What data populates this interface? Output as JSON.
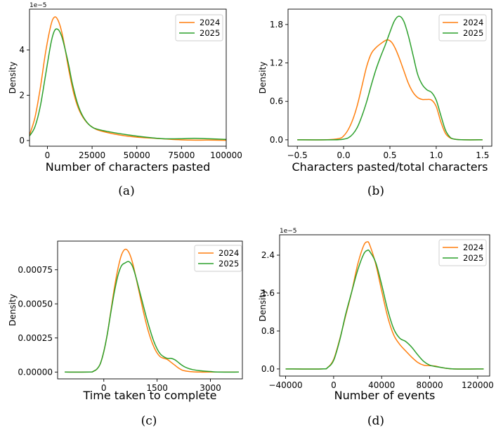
{
  "chart_data": [
    {
      "id": "a",
      "type": "line",
      "caption": "(a)",
      "xlabel": "Number of characters pasted",
      "ylabel": "Density",
      "y_offset_label": "1e−5",
      "xlim": [
        -10000,
        100000
      ],
      "ylim": [
        -0.25,
        5.8
      ],
      "xticks": [
        0,
        25000,
        50000,
        75000,
        100000
      ],
      "xtick_labels": [
        "0",
        "25000",
        "50000",
        "75000",
        "100000"
      ],
      "yticks": [
        0,
        2,
        4
      ],
      "ytick_labels": [
        "0",
        "2",
        "4"
      ],
      "legend_position": "top-right",
      "series": [
        {
          "name": "2024",
          "color": "#ff7f0e",
          "x": [
            -10000,
            -7000,
            -4000,
            -1000,
            2000,
            4000,
            6000,
            8000,
            10000,
            12000,
            15000,
            18000,
            22000,
            26000,
            30000,
            40000,
            50000,
            60000,
            70000,
            80000,
            90000,
            100000
          ],
          "y": [
            0.25,
            1.0,
            2.3,
            3.9,
            5.1,
            5.45,
            5.3,
            4.8,
            4.0,
            3.1,
            2.0,
            1.3,
            0.8,
            0.55,
            0.42,
            0.25,
            0.15,
            0.1,
            0.05,
            0.02,
            0.02,
            0.01
          ]
        },
        {
          "name": "2025",
          "color": "#2ca02c",
          "x": [
            -10000,
            -7000,
            -4000,
            -1000,
            2000,
            4000,
            6000,
            8000,
            10000,
            12000,
            14000,
            17000,
            20000,
            24000,
            28000,
            35000,
            45000,
            55000,
            65000,
            75000,
            82000,
            90000,
            100000
          ],
          "y": [
            0.2,
            0.6,
            1.5,
            2.9,
            4.3,
            4.85,
            4.9,
            4.6,
            4.0,
            3.3,
            2.5,
            1.6,
            1.05,
            0.65,
            0.5,
            0.38,
            0.25,
            0.15,
            0.08,
            0.08,
            0.1,
            0.08,
            0.05
          ]
        }
      ]
    },
    {
      "id": "b",
      "type": "line",
      "caption": "(b)",
      "xlabel": "Characters pasted/total characters",
      "ylabel": "Density",
      "y_offset_label": "",
      "xlim": [
        -0.6,
        1.6
      ],
      "ylim": [
        -0.1,
        2.04
      ],
      "xticks": [
        -0.5,
        0.0,
        0.5,
        1.0,
        1.5
      ],
      "xtick_labels": [
        "−0.5",
        "0.0",
        "0.5",
        "1.0",
        "1.5"
      ],
      "yticks": [
        0.0,
        0.6,
        1.2,
        1.8
      ],
      "ytick_labels": [
        "0.0",
        "0.6",
        "1.2",
        "1.8"
      ],
      "legend_position": "top-right",
      "series": [
        {
          "name": "2024",
          "color": "#ff7f0e",
          "x": [
            -0.5,
            -0.2,
            -0.05,
            0.0,
            0.05,
            0.1,
            0.15,
            0.2,
            0.25,
            0.3,
            0.35,
            0.4,
            0.45,
            0.48,
            0.52,
            0.56,
            0.6,
            0.65,
            0.7,
            0.75,
            0.8,
            0.85,
            0.9,
            0.95,
            1.0,
            1.05,
            1.1,
            1.15,
            1.2,
            1.3,
            1.5
          ],
          "y": [
            0.0,
            0.0,
            0.02,
            0.06,
            0.16,
            0.32,
            0.55,
            0.85,
            1.15,
            1.35,
            1.44,
            1.5,
            1.55,
            1.56,
            1.52,
            1.42,
            1.28,
            1.08,
            0.88,
            0.74,
            0.66,
            0.63,
            0.63,
            0.62,
            0.52,
            0.28,
            0.1,
            0.03,
            0.01,
            0.0,
            0.0
          ]
        },
        {
          "name": "2025",
          "color": "#2ca02c",
          "x": [
            -0.5,
            -0.1,
            0.0,
            0.05,
            0.1,
            0.15,
            0.2,
            0.25,
            0.3,
            0.35,
            0.4,
            0.45,
            0.5,
            0.55,
            0.6,
            0.65,
            0.7,
            0.75,
            0.8,
            0.85,
            0.9,
            0.95,
            1.0,
            1.05,
            1.1,
            1.15,
            1.2,
            1.3,
            1.5
          ],
          "y": [
            0.0,
            0.0,
            0.01,
            0.03,
            0.09,
            0.2,
            0.38,
            0.6,
            0.86,
            1.1,
            1.3,
            1.48,
            1.68,
            1.86,
            1.93,
            1.85,
            1.62,
            1.32,
            1.02,
            0.86,
            0.78,
            0.74,
            0.62,
            0.38,
            0.15,
            0.04,
            0.01,
            0.0,
            0.0
          ]
        }
      ]
    },
    {
      "id": "c",
      "type": "line",
      "caption": "(c)",
      "xlabel": "Time taken to complete",
      "ylabel": "Density",
      "y_offset_label": "",
      "xlim": [
        -1300,
        3900
      ],
      "ylim": [
        -5e-05,
        0.00096
      ],
      "xticks": [
        0,
        1500,
        3000
      ],
      "xtick_labels": [
        "0",
        "1500",
        "3000"
      ],
      "yticks": [
        0.0,
        0.00025,
        0.0005,
        0.00075
      ],
      "ytick_labels": [
        "0.00000",
        "0.00025",
        "0.00050",
        "0.00075"
      ],
      "legend_position": "top-right",
      "series": [
        {
          "name": "2024",
          "color": "#ff7f0e",
          "x": [
            -1100,
            -400,
            -300,
            -200,
            -100,
            0,
            100,
            200,
            300,
            400,
            500,
            600,
            700,
            800,
            900,
            1000,
            1100,
            1200,
            1300,
            1400,
            1500,
            1600,
            1700,
            1800,
            1900,
            2000,
            2100,
            2200,
            2300,
            2400,
            2500,
            2700,
            3000,
            3800
          ],
          "y": [
            0.0,
            0.0,
            5e-06,
            2e-05,
            6e-05,
            0.00015,
            0.00028,
            0.00045,
            0.00062,
            0.00076,
            0.00086,
            0.0009,
            0.00088,
            0.00081,
            0.0007,
            0.00058,
            0.00046,
            0.00035,
            0.00026,
            0.00019,
            0.00014,
            0.00011,
            0.0001,
            9e-05,
            7e-05,
            5e-05,
            3e-05,
            1.5e-05,
            8e-06,
            4e-06,
            2e-06,
            0.0,
            0.0,
            0.0
          ]
        },
        {
          "name": "2025",
          "color": "#2ca02c",
          "x": [
            -1100,
            -400,
            -300,
            -200,
            -100,
            0,
            100,
            200,
            300,
            400,
            500,
            600,
            700,
            800,
            900,
            1000,
            1100,
            1200,
            1300,
            1400,
            1500,
            1600,
            1700,
            1800,
            1900,
            2000,
            2100,
            2200,
            2300,
            2400,
            2500,
            2700,
            3000,
            3200,
            3800
          ],
          "y": [
            0.0,
            0.0,
            5e-06,
            2e-05,
            6e-05,
            0.00015,
            0.00028,
            0.00044,
            0.00059,
            0.00071,
            0.00078,
            0.0008,
            0.00081,
            0.00078,
            0.0007,
            0.0006,
            0.0005,
            0.0004,
            0.00031,
            0.00023,
            0.00017,
            0.00013,
            0.00011,
            0.0001,
            0.0001,
            9e-05,
            7e-05,
            5e-05,
            3.5e-05,
            2.5e-05,
            1.8e-05,
            1e-05,
            4e-06,
            0.0,
            0.0
          ]
        }
      ]
    },
    {
      "id": "d",
      "type": "line",
      "caption": "(d)",
      "xlabel": "Number of events",
      "ylabel": "Density",
      "y_offset_label": "1e−5",
      "xlim": [
        -45000,
        130000
      ],
      "ylim": [
        -0.15,
        2.83
      ],
      "xticks": [
        -40000,
        0,
        40000,
        80000,
        120000
      ],
      "xtick_labels": [
        "−40000",
        "0",
        "40000",
        "80000",
        "120000"
      ],
      "yticks": [
        0.0,
        0.8,
        1.6,
        2.4
      ],
      "ytick_labels": [
        "0.0",
        "0.8",
        "1.6",
        "2.4"
      ],
      "legend_position": "top-right",
      "series": [
        {
          "name": "2024",
          "color": "#ff7f0e",
          "x": [
            -40000,
            -10000,
            -5000,
            0,
            5000,
            10000,
            15000,
            20000,
            25000,
            28000,
            30000,
            35000,
            40000,
            45000,
            50000,
            55000,
            60000,
            65000,
            70000,
            75000,
            80000,
            85000,
            90000,
            100000,
            125000
          ],
          "y": [
            0.0,
            0.0,
            0.03,
            0.2,
            0.62,
            1.12,
            1.62,
            2.2,
            2.6,
            2.68,
            2.62,
            2.22,
            1.65,
            1.1,
            0.72,
            0.52,
            0.38,
            0.25,
            0.14,
            0.08,
            0.07,
            0.06,
            0.03,
            0.0,
            0.0
          ]
        },
        {
          "name": "2025",
          "color": "#2ca02c",
          "x": [
            -40000,
            -10000,
            -5000,
            0,
            5000,
            10000,
            15000,
            20000,
            25000,
            28000,
            30000,
            35000,
            40000,
            45000,
            50000,
            55000,
            60000,
            65000,
            70000,
            75000,
            80000,
            85000,
            90000,
            100000,
            125000
          ],
          "y": [
            0.0,
            0.0,
            0.03,
            0.18,
            0.6,
            1.15,
            1.62,
            2.08,
            2.42,
            2.5,
            2.48,
            2.25,
            1.78,
            1.25,
            0.85,
            0.65,
            0.58,
            0.46,
            0.3,
            0.16,
            0.08,
            0.05,
            0.03,
            0.0,
            0.0
          ]
        }
      ]
    }
  ]
}
